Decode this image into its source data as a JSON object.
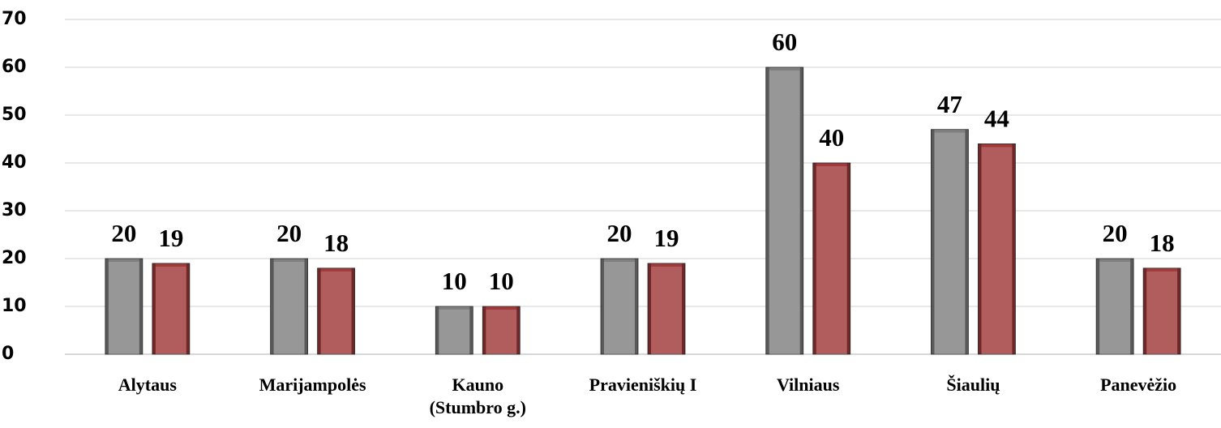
{
  "chart_data": {
    "type": "bar",
    "categories": [
      "Alytaus",
      "Marijampolės",
      "Kauno\n(Stumbro g.)",
      "Pravieniškių I",
      "Vilniaus",
      "Šiaulių",
      "Panevėžio"
    ],
    "series": [
      {
        "color": "#808080",
        "values": [
          20,
          20,
          10,
          20,
          60,
          47,
          20
        ]
      },
      {
        "color": "#a0393a",
        "values": [
          19,
          18,
          10,
          19,
          40,
          44,
          18
        ]
      }
    ],
    "ylim": [
      0,
      70
    ],
    "yticks": [
      0,
      10,
      20,
      30,
      40,
      50,
      60,
      70
    ],
    "grid": true
  }
}
